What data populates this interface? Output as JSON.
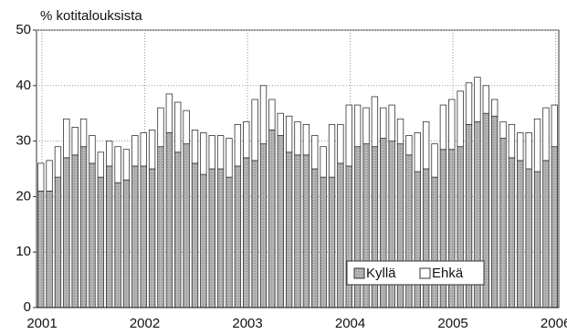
{
  "chart_data": {
    "type": "stacked_bar",
    "y_label": "% kotitalouksista",
    "categories": [
      "2001",
      null,
      null,
      null,
      null,
      null,
      null,
      null,
      null,
      null,
      null,
      null,
      "2002",
      null,
      null,
      null,
      null,
      null,
      null,
      null,
      null,
      null,
      null,
      null,
      "2003",
      null,
      null,
      null,
      null,
      null,
      null,
      null,
      null,
      null,
      null,
      null,
      "2004",
      null,
      null,
      null,
      null,
      null,
      null,
      null,
      null,
      null,
      null,
      null,
      "2005",
      null,
      null,
      null,
      null,
      null,
      null,
      null,
      null,
      null,
      null,
      null,
      "2006"
    ],
    "series": [
      {
        "name": "Kyllä",
        "color": "#b4b4b4",
        "values": [
          21,
          21,
          23.5,
          27,
          27.5,
          29,
          26,
          23.5,
          25.5,
          22.5,
          23,
          25.5,
          25.5,
          25,
          29,
          31.5,
          28,
          29.5,
          26,
          24,
          25,
          25,
          23.5,
          25.5,
          27,
          26.5,
          29.5,
          32,
          31,
          28,
          27.5,
          27.5,
          25,
          23.5,
          23.5,
          26,
          25.5,
          29,
          29.5,
          29,
          30.5,
          30,
          29.5,
          27.5,
          24.5,
          25,
          23.5,
          28.5,
          28.5,
          29,
          33,
          33.5,
          35,
          34.5,
          30.5,
          27,
          26.5,
          25,
          24.5,
          26.5,
          29
        ]
      },
      {
        "name": "Ehkä",
        "color": "#ffffff",
        "values": [
          5,
          5.5,
          5.5,
          7,
          5,
          5,
          5,
          4.5,
          4.5,
          6.5,
          5.5,
          5.5,
          6,
          7,
          7,
          7,
          9,
          6,
          6,
          7.5,
          6,
          6,
          7,
          7.5,
          6.5,
          11,
          10.5,
          5.5,
          4,
          6.5,
          6,
          5.5,
          6,
          5.5,
          9.5,
          7,
          11,
          7.5,
          6.5,
          9,
          5.5,
          6.5,
          4.5,
          3.5,
          7,
          8.5,
          6,
          8,
          9,
          10,
          7.5,
          8,
          5,
          3,
          3,
          6,
          5,
          6.5,
          9.5,
          9.5,
          7.5
        ]
      }
    ],
    "ylim": [
      0,
      50
    ],
    "yticks": [
      0,
      10,
      20,
      30,
      40,
      50
    ],
    "grid": true,
    "legend": "lower-right"
  }
}
